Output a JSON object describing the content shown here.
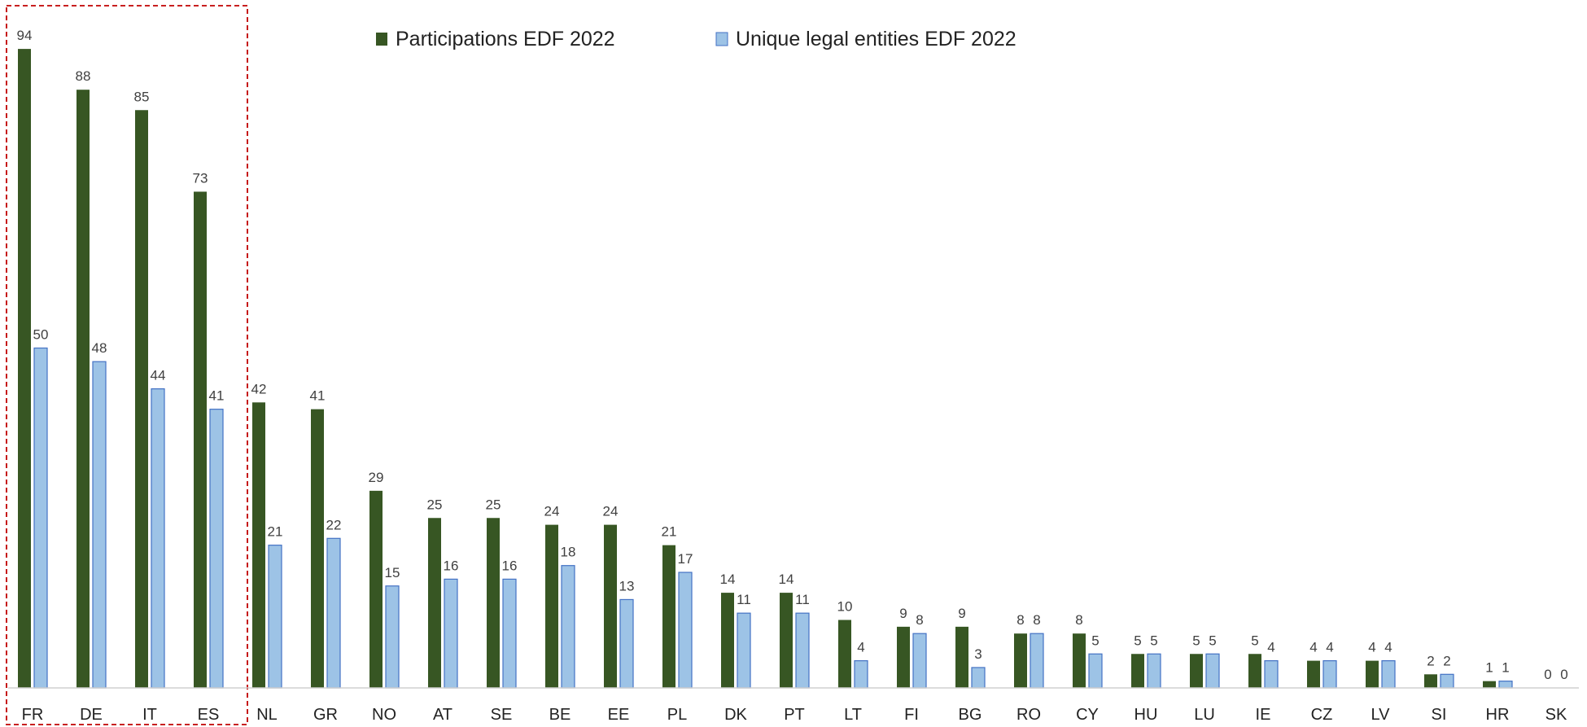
{
  "chart_data": {
    "type": "bar",
    "title": "",
    "xlabel": "",
    "ylabel": "",
    "ylim": [
      0,
      100
    ],
    "grid": false,
    "legend_position": "top-center",
    "highlight_box": "dashed red box around FR, DE, IT, ES",
    "categories": [
      "FR",
      "DE",
      "IT",
      "ES",
      "NL",
      "GR",
      "NO",
      "AT",
      "SE",
      "BE",
      "EE",
      "PL",
      "DK",
      "PT",
      "LT",
      "FI",
      "BG",
      "RO",
      "CY",
      "HU",
      "LU",
      "IE",
      "CZ",
      "LV",
      "SI",
      "HR",
      "SK"
    ],
    "series": [
      {
        "name": "Participations EDF 2022",
        "color": "#375623",
        "values": [
          94,
          88,
          85,
          73,
          42,
          41,
          29,
          25,
          25,
          24,
          24,
          21,
          14,
          14,
          10,
          9,
          9,
          8,
          8,
          5,
          5,
          5,
          4,
          4,
          2,
          1,
          0
        ]
      },
      {
        "name": "Unique legal entities EDF 2022",
        "color": "#9DC3E6",
        "values": [
          50,
          48,
          44,
          41,
          21,
          22,
          15,
          16,
          16,
          18,
          13,
          17,
          11,
          11,
          4,
          8,
          3,
          8,
          5,
          5,
          5,
          4,
          4,
          4,
          2,
          1,
          0
        ]
      }
    ]
  }
}
